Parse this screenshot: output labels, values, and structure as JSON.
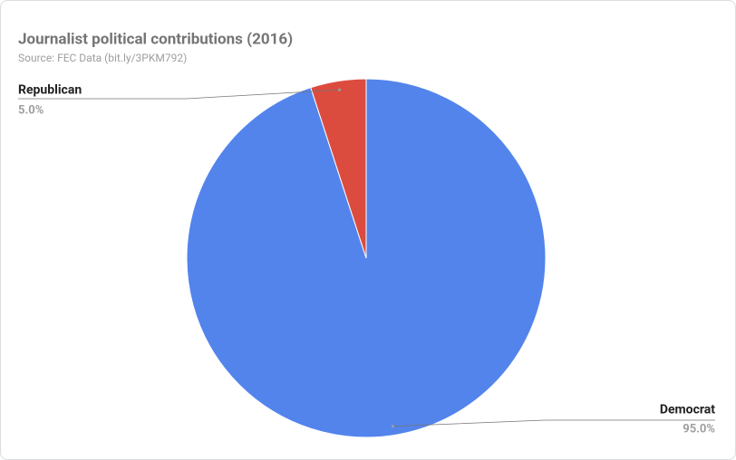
{
  "chart_data": {
    "type": "pie",
    "title": "Journalist political contributions (2016)",
    "subtitle": "Source: FEC Data (bit.ly/3PKM792)",
    "categories": [
      "Democrat",
      "Republican"
    ],
    "values": [
      95,
      5
    ],
    "value_labels": [
      "95.0%",
      "5.0%"
    ],
    "colors": [
      "#5384ec",
      "#db4c3f"
    ]
  }
}
